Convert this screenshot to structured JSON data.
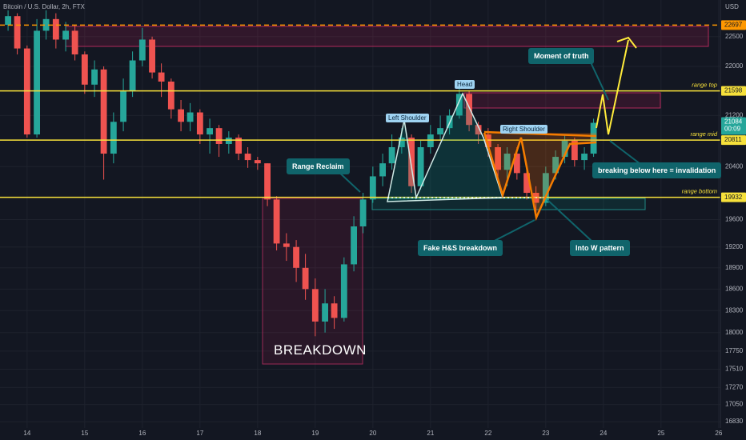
{
  "chart_data": {
    "type": "candlestick",
    "title": "Bitcoin / U.S. Dollar, 2h, FTX",
    "currency": "USD",
    "countdown": "00:09",
    "log_scale": true,
    "grid": true,
    "up_color": "#26a69a",
    "down_color": "#ef5350",
    "x": [
      13.67,
      13.83,
      14,
      14.17,
      14.33,
      14.5,
      14.67,
      14.83,
      15,
      15.17,
      15.33,
      15.5,
      15.67,
      15.83,
      16,
      16.17,
      16.33,
      16.5,
      16.67,
      16.83,
      17,
      17.17,
      17.33,
      17.5,
      17.67,
      17.83,
      18,
      18.17,
      18.33,
      18.5,
      18.67,
      18.83,
      19,
      19.17,
      19.33,
      19.5,
      19.67,
      19.83,
      20,
      20.17,
      20.33,
      20.5,
      20.67,
      20.83,
      21,
      21.17,
      21.33,
      21.5,
      21.67,
      21.83,
      22,
      22.17,
      22.33,
      22.5,
      22.67,
      22.83,
      23,
      23.17,
      23.33,
      23.5,
      23.67,
      23.83
    ],
    "open": [
      22700,
      22850,
      22300,
      20900,
      22600,
      22800,
      22450,
      22600,
      22200,
      21700,
      21950,
      20600,
      21100,
      21600,
      22100,
      22450,
      21900,
      21750,
      21300,
      21100,
      21250,
      20900,
      21000,
      20750,
      20850,
      20600,
      20500,
      20450,
      19900,
      19250,
      19200,
      18900,
      18600,
      18150,
      18400,
      18200,
      18950,
      19500,
      19900,
      20250,
      20450,
      20700,
      20850,
      20100,
      20700,
      20900,
      21000,
      21200,
      21550,
      21050,
      20900,
      20700,
      20350,
      20600,
      20300,
      20000,
      19850,
      20300,
      20550,
      20800,
      20500,
      20600
    ],
    "high": [
      22950,
      22900,
      22350,
      22800,
      22950,
      22900,
      22750,
      22700,
      22250,
      22100,
      22000,
      21250,
      21800,
      22250,
      22650,
      22500,
      22050,
      21800,
      21450,
      21400,
      21300,
      21150,
      21050,
      20950,
      20900,
      20700,
      20550,
      20450,
      19950,
      19400,
      19300,
      19100,
      18750,
      18600,
      18500,
      19050,
      19650,
      20000,
      20400,
      20600,
      20900,
      21000,
      20900,
      20800,
      21050,
      21200,
      21300,
      21650,
      21600,
      21100,
      21000,
      20750,
      20700,
      20700,
      20400,
      20100,
      20400,
      20650,
      20900,
      20850,
      20700,
      21150
    ],
    "low": [
      22600,
      22200,
      20850,
      20850,
      22450,
      22300,
      22250,
      22100,
      21550,
      21500,
      20200,
      20450,
      20950,
      21500,
      22000,
      21800,
      21500,
      21150,
      20950,
      20950,
      20750,
      20600,
      20550,
      20600,
      20500,
      20380,
      20350,
      19800,
      19150,
      19000,
      18700,
      18450,
      17950,
      18000,
      18050,
      18150,
      18850,
      19400,
      19850,
      20100,
      20350,
      20600,
      20000,
      20050,
      20600,
      20800,
      20900,
      21150,
      20950,
      20750,
      20550,
      20200,
      20100,
      20200,
      19900,
      19700,
      19800,
      20200,
      20450,
      20400,
      20350,
      20550
    ],
    "close": [
      22850,
      22300,
      20900,
      22600,
      22800,
      22450,
      22600,
      22200,
      21700,
      21950,
      20600,
      21100,
      21600,
      22100,
      22450,
      21900,
      21750,
      21300,
      21100,
      21250,
      20900,
      21000,
      20750,
      20850,
      20600,
      20500,
      20450,
      19900,
      19250,
      19200,
      18900,
      18600,
      18150,
      18400,
      18200,
      18950,
      19500,
      19900,
      20250,
      20450,
      20700,
      20850,
      20100,
      20700,
      20900,
      21000,
      21200,
      21550,
      21050,
      20900,
      20700,
      20350,
      20600,
      20300,
      20000,
      19850,
      20300,
      20550,
      20800,
      20500,
      20600,
      21084
    ],
    "xlim": [
      13.53,
      26.03
    ],
    "xticks": [
      14,
      15,
      16,
      17,
      18,
      19,
      20,
      21,
      22,
      23,
      24,
      25,
      26
    ],
    "ylim": [
      16750,
      23130
    ],
    "yticks": [
      22500,
      22000,
      21200,
      20400,
      19600,
      19200,
      18900,
      18600,
      18300,
      18000,
      17750,
      17510,
      17270,
      17050,
      16830
    ],
    "levels": [
      {
        "value": 22697,
        "color": "#ff9800",
        "dashed": true
      },
      {
        "value": 21598,
        "name": "range top",
        "color": "#f7e13b"
      },
      {
        "value": 20811,
        "name": "range mid",
        "color": "#f7e13b"
      },
      {
        "value": 19932,
        "name": "range bottom",
        "color": "#f7e13b"
      }
    ],
    "annotations": [
      "Moment of truth",
      "Range Reclaim",
      "Fake H&S breakdown",
      "Into W pattern",
      "breaking below here = invalidation",
      "BREAKDOWN"
    ],
    "pattern_labels": [
      "Left Shoulder",
      "Head",
      "Right Shoulder"
    ]
  }
}
